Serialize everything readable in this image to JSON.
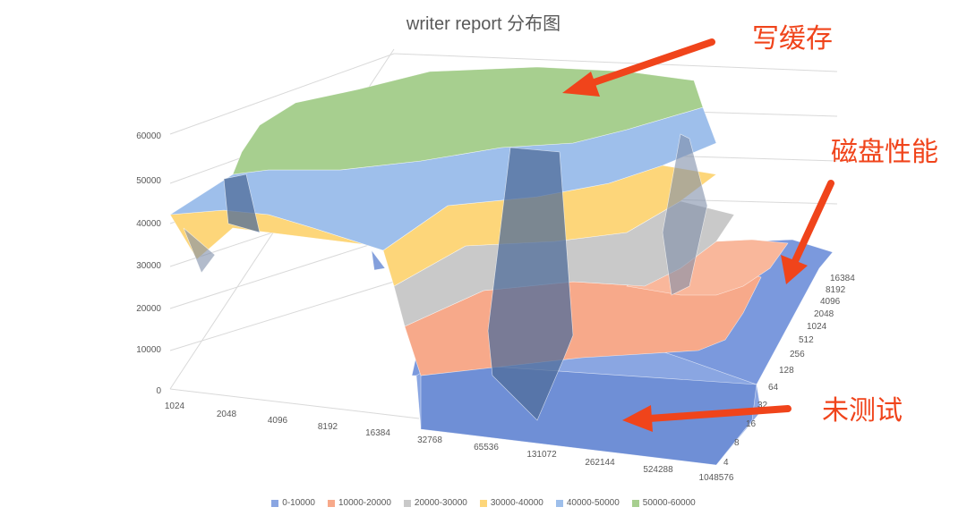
{
  "chart_data": {
    "type": "surface",
    "title": "writer report 分布图",
    "z_ticks": [
      "0",
      "10000",
      "20000",
      "30000",
      "40000",
      "50000",
      "60000"
    ],
    "x_ticks": [
      "1024",
      "2048",
      "4096",
      "8192",
      "16384",
      "32768",
      "65536",
      "131072",
      "262144",
      "524288",
      "1048576"
    ],
    "y_ticks": [
      "4",
      "8",
      "16",
      "32",
      "64",
      "128",
      "256",
      "512",
      "1024",
      "2048",
      "4096",
      "8192",
      "16384"
    ],
    "legend": [
      {
        "label": "0-10000",
        "color": "#8aa6e2"
      },
      {
        "label": "10000-20000",
        "color": "#f7a98a"
      },
      {
        "label": "20000-30000",
        "color": "#c9c9c9"
      },
      {
        "label": "30000-40000",
        "color": "#fdd67a"
      },
      {
        "label": "40000-50000",
        "color": "#9ebfeb"
      },
      {
        "label": "50000-60000",
        "color": "#a7cf8f"
      }
    ],
    "zlim": [
      0,
      60000
    ]
  },
  "annotations": {
    "write_cache": "写缓存",
    "disk_perf": "磁盘性能",
    "untested": "未测试"
  }
}
